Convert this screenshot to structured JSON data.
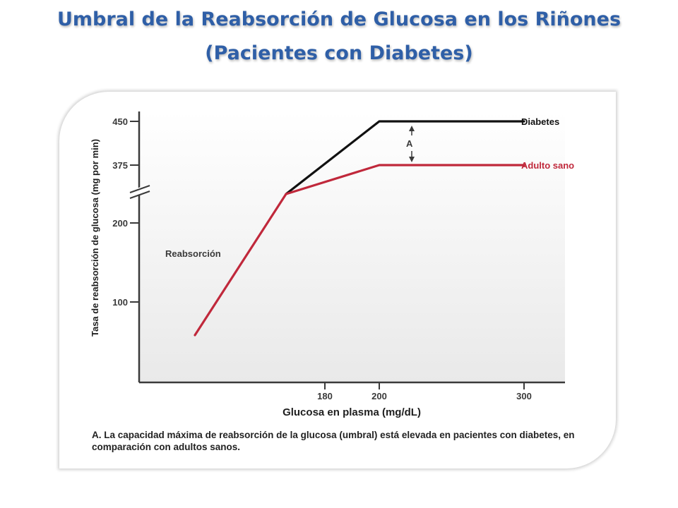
{
  "slide": {
    "title_line1": "Umbral de la Reabsorción de Glucosa en los Riñones",
    "title_line2": "(Pacientes con Diabetes)"
  },
  "colors": {
    "title": "#2f5fa7",
    "diabetes": "#111111",
    "healthy": "#c0283b",
    "axis": "#3a3a3a"
  },
  "chart_data": {
    "type": "line",
    "xlabel": "Glucosa en plasma (mg/dL)",
    "ylabel": "Tasa de reabsorción de glucosa (mg por min)",
    "x_ticks": [
      180,
      200,
      300
    ],
    "y_ticks": [
      100,
      200,
      375,
      450
    ],
    "y_axis_break": true,
    "grid": false,
    "series": [
      {
        "name": "Diabetes",
        "color": "#111111",
        "x": [
          155,
          200,
          300
        ],
        "y": [
          290,
          450,
          450
        ]
      },
      {
        "name": "Adulto sano",
        "color": "#c0283b",
        "x": [
          100,
          155,
          200,
          300
        ],
        "y": [
          55,
          290,
          375,
          375
        ]
      }
    ],
    "annotations": {
      "reabsorption_label": "Reabsorción",
      "gap_label": "A"
    },
    "caption": "A. La capacidad máxima de reabsorción de la glucosa (umbral) está elevada en pacientes con diabetes, en comparación con adultos sanos."
  }
}
